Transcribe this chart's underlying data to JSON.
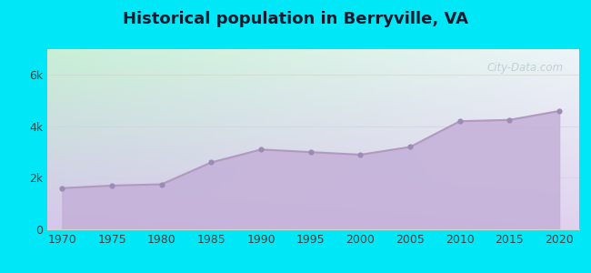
{
  "title": "Historical population in Berryville, VA",
  "years": [
    1970,
    1975,
    1980,
    1985,
    1990,
    1995,
    2000,
    2005,
    2010,
    2015,
    2020
  ],
  "population": [
    1600,
    1700,
    1750,
    2600,
    3100,
    3000,
    2900,
    3200,
    4200,
    4250,
    4600
  ],
  "line_color": "#b09abe",
  "fill_color": "#c4b0d8",
  "fill_alpha": 0.85,
  "marker_color": "#9d8bb5",
  "marker_size": 20,
  "bg_outer": "#00e8f8",
  "title_color": "#1a1a2e",
  "title_fontsize": 13,
  "axis_color": "#444444",
  "tick_fontsize": 9,
  "grid_color": "#d0d8c8",
  "grid_alpha": 0.8,
  "ytick_labels": [
    "0",
    "2k",
    "4k",
    "6k"
  ],
  "ytick_values": [
    0,
    2000,
    4000,
    6000
  ],
  "ylim": [
    0,
    7000
  ],
  "xlim": [
    1968.5,
    2022
  ],
  "watermark_text": "City-Data.com",
  "watermark_color": "#99bbbb",
  "watermark_alpha": 0.55,
  "bg_topleft": "#c8f0d8",
  "bg_topright": "#e8f4f8",
  "bg_bottomleft": "#d8ccec",
  "bg_bottomright": "#e0d4f0"
}
